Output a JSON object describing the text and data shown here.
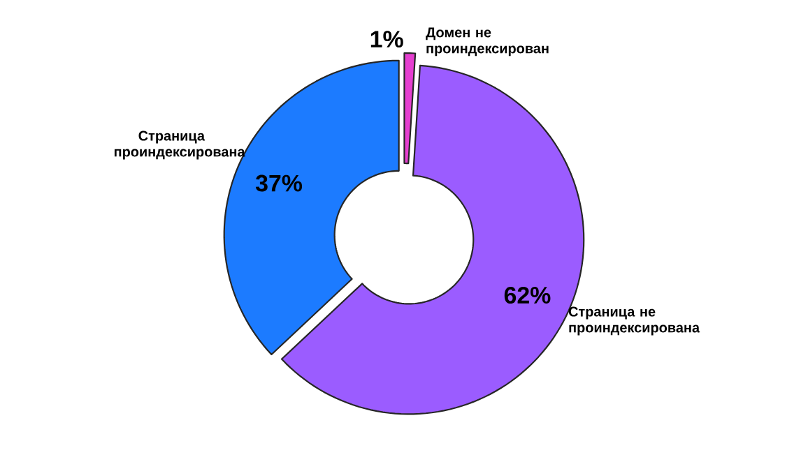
{
  "chart_data": {
    "type": "donut",
    "categories": [
      "Домен не проиндексирован",
      "Страница не проиндексирована",
      "Страница проиндексирована"
    ],
    "values": [
      1,
      62,
      37
    ],
    "value_labels": [
      "1%",
      "62%",
      "37%"
    ],
    "colors": [
      "#e53fd0",
      "#9b5cff",
      "#1c7bff"
    ]
  }
}
